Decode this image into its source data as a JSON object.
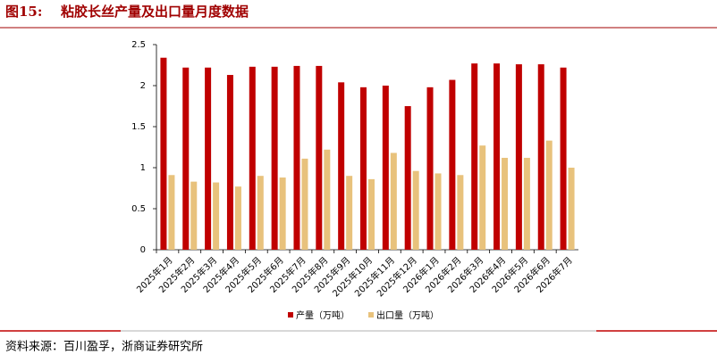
{
  "chart_data": {
    "type": "bar",
    "figure_label": "图15:",
    "title": "粘胶长丝产量及出口量月度数据",
    "source": "资料来源：百川盈孚，浙商证券研究所",
    "categories": [
      "2025年1月",
      "2025年2月",
      "2025年3月",
      "2025年4月",
      "2025年5月",
      "2025年6月",
      "2025年7月",
      "2025年8月",
      "2025年9月",
      "2025年10月",
      "2025年11月",
      "2025年12月",
      "2026年1月",
      "2026年2月",
      "2026年3月",
      "2026年4月",
      "2026年5月",
      "2026年6月",
      "2026年7月"
    ],
    "series": [
      {
        "name": "产量（万吨）",
        "color": "#c00000",
        "values": [
          2.34,
          2.22,
          2.22,
          2.13,
          2.23,
          2.23,
          2.24,
          2.24,
          2.04,
          1.98,
          2.0,
          1.75,
          1.98,
          2.07,
          2.27,
          2.27,
          2.26,
          2.26,
          2.22
        ]
      },
      {
        "name": "出口量（万吨）",
        "color": "#e8c27c",
        "values": [
          0.91,
          0.83,
          0.82,
          0.77,
          0.9,
          0.88,
          1.11,
          1.22,
          0.9,
          0.86,
          1.18,
          0.96,
          0.93,
          0.91,
          1.27,
          1.12,
          1.12,
          1.33,
          1.0
        ]
      }
    ],
    "ylim": [
      0,
      2.5
    ],
    "yticks": [
      0,
      0.5,
      1,
      1.5,
      2,
      2.5
    ],
    "legend": "bottom"
  }
}
